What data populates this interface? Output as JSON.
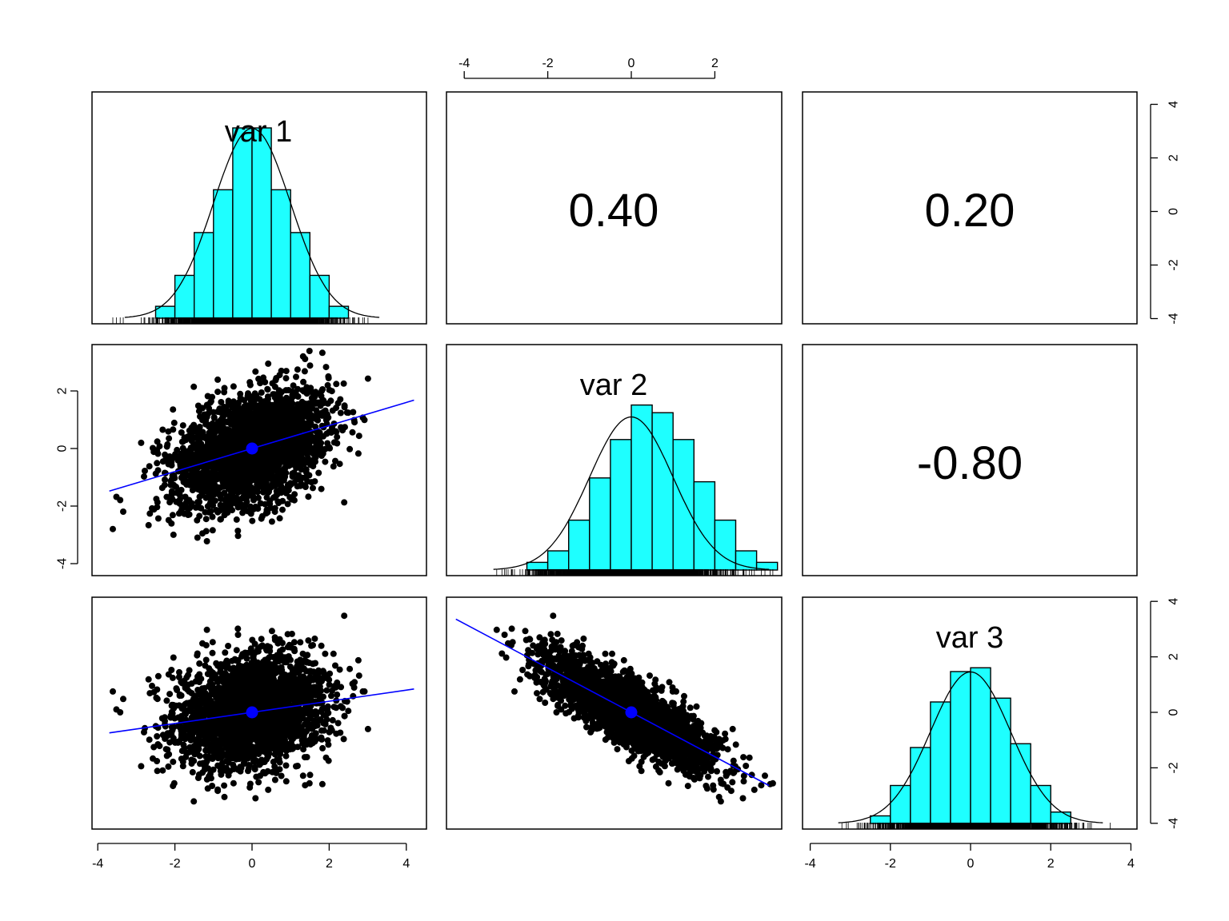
{
  "chart_data": {
    "type": "scatter",
    "layout": "pairs-matrix-3x3",
    "variables": [
      "var 1",
      "var 2",
      "var 3"
    ],
    "correlations": [
      {
        "row": 1,
        "col": 2,
        "vars": [
          "var 1",
          "var 2"
        ],
        "text": "0.40",
        "value": 0.4
      },
      {
        "row": 1,
        "col": 3,
        "vars": [
          "var 1",
          "var 3"
        ],
        "text": "0.20",
        "value": 0.2
      },
      {
        "row": 2,
        "col": 3,
        "vars": [
          "var 2",
          "var 3"
        ],
        "text": "-0.80",
        "value": -0.8
      }
    ],
    "axes": {
      "x_range": [
        -4,
        4.3
      ],
      "y_range": [
        -4.2,
        4.3
      ],
      "top_ticks": [
        "-4",
        "-2",
        "0",
        "2"
      ],
      "bottom_ticks_col1": [
        "-4",
        "-2",
        "0",
        "2",
        "4"
      ],
      "bottom_ticks_col3": [
        "-4",
        "-2",
        "0",
        "2",
        "4"
      ],
      "left_ticks_row2": [
        "2",
        "0",
        "-2",
        "-4"
      ],
      "right_ticks_row1": [
        "4",
        "2",
        "0",
        "-2",
        "-4"
      ],
      "right_ticks_row3": [
        "4",
        "2",
        "0",
        "-2",
        "-4"
      ]
    },
    "histograms": [
      {
        "variable": "var 1",
        "bin_width": 0.5,
        "bins_start": -2.5,
        "densities": [
          0.025,
          0.09,
          0.18,
          0.27,
          0.4,
          0.4,
          0.27,
          0.18,
          0.09,
          0.025
        ]
      },
      {
        "variable": "var 2",
        "bin_width": 0.5,
        "bins_start": -2.5,
        "densities": [
          0.02,
          0.05,
          0.13,
          0.24,
          0.34,
          0.43,
          0.41,
          0.34,
          0.23,
          0.13,
          0.05,
          0.02
        ]
      },
      {
        "variable": "var 3",
        "bin_width": 0.5,
        "bins_start": -2.5,
        "densities": [
          0.02,
          0.1,
          0.2,
          0.32,
          0.4,
          0.41,
          0.33,
          0.21,
          0.1,
          0.03
        ]
      }
    ],
    "scatter_fits": [
      {
        "panel": "var1-var2",
        "x_var": "var 1",
        "y_var": "var 2",
        "slope": 0.4,
        "intercept": 0.0,
        "center": [
          0,
          0
        ]
      },
      {
        "panel": "var1-var3",
        "x_var": "var 1",
        "y_var": "var 3",
        "slope": 0.2,
        "intercept": 0.0,
        "center": [
          0,
          0
        ]
      },
      {
        "panel": "var2-var3",
        "x_var": "var 2",
        "y_var": "var 3",
        "slope": -0.8,
        "intercept": 0.0,
        "center": [
          0,
          0
        ]
      }
    ],
    "point_count_approx": 10000,
    "colors": {
      "histogram_fill": "#1effff",
      "fit_line": "#0000ff",
      "points": "#000000",
      "frame": "#000000"
    },
    "grid": false
  }
}
